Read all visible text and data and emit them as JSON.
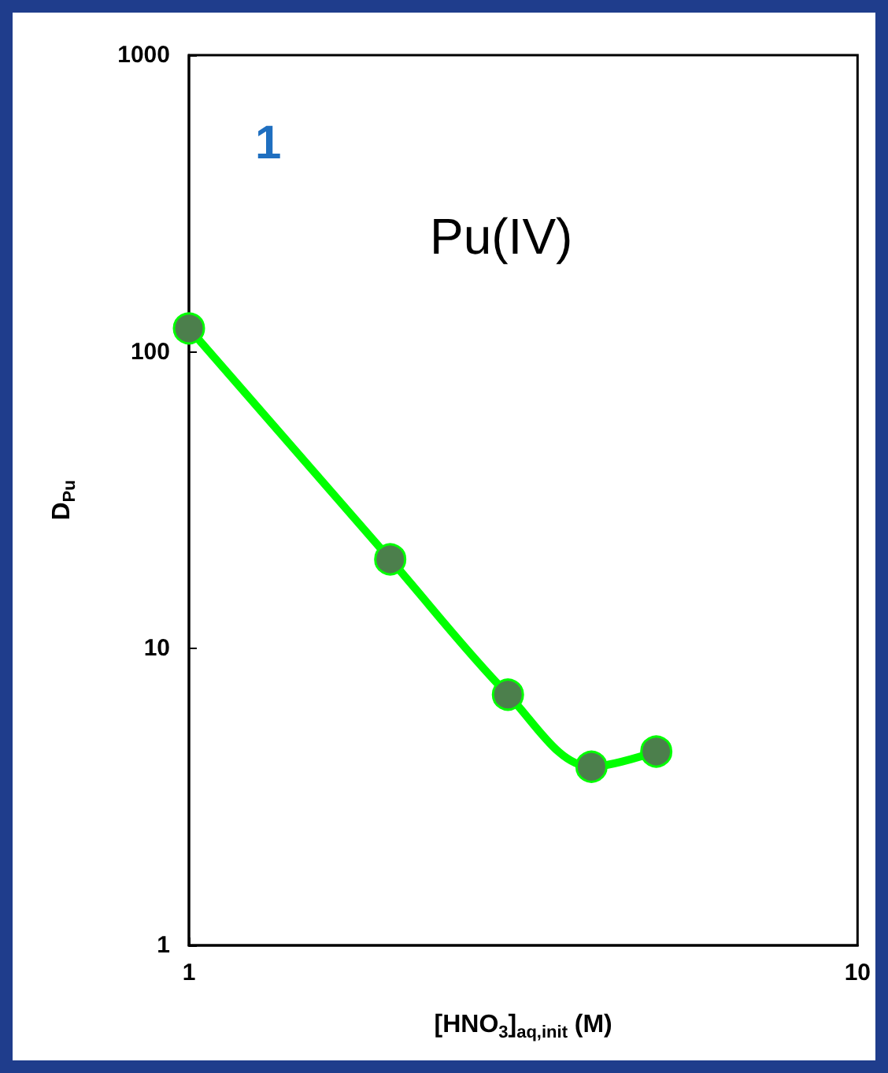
{
  "chart_data": {
    "type": "line",
    "xlabel": "[HNO$_{3}$]$_{aq,init}$ (M)",
    "ylabel": "D$_{Pu}$",
    "annotations": [
      "1",
      "Pu(IV)"
    ],
    "x": [
      1,
      2,
      3,
      4,
      5
    ],
    "series": [
      {
        "color": "#00ff00",
        "values": [
          120,
          20,
          7,
          4,
          4.5
        ]
      }
    ],
    "log": "xy",
    "xlim": [
      1,
      10
    ],
    "ylim": [
      1,
      1000
    ],
    "xticks": [
      1,
      10
    ],
    "yticks": [
      1,
      10,
      100,
      1000
    ],
    "grid": false,
    "marker": "circle",
    "line_style": "solid"
  }
}
